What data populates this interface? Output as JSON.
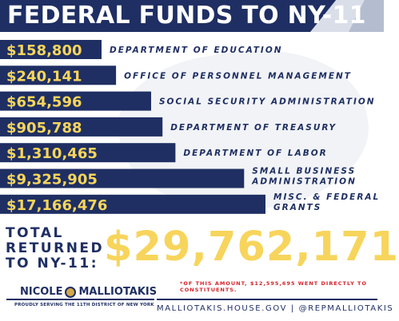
{
  "header": {
    "title": "FEDERAL FUNDS TO NY-11"
  },
  "chart_data": {
    "type": "bar",
    "orientation": "horizontal",
    "title": "FEDERAL FUNDS TO NY-11",
    "categories": [
      "DEPARTMENT OF EDUCATION",
      "OFFICE OF PERSONNEL MANAGEMENT",
      "SOCIAL SECURITY ADMINISTRATION",
      "DEPARTMENT OF TREASURY",
      "DEPARTMENT OF LABOR",
      "SMALL BUSINESS ADMINISTRATION",
      "MISC. & FEDERAL GRANTS"
    ],
    "category_lines": [
      [
        "DEPARTMENT OF EDUCATION"
      ],
      [
        "OFFICE OF PERSONNEL MANAGEMENT"
      ],
      [
        "SOCIAL SECURITY ADMINISTRATION"
      ],
      [
        "DEPARTMENT OF TREASURY"
      ],
      [
        "DEPARTMENT OF LABOR"
      ],
      [
        "SMALL BUSINESS",
        "ADMINISTRATION"
      ],
      [
        "MISC. & FEDERAL",
        "GRANTS"
      ]
    ],
    "values": [
      158800,
      240141,
      654596,
      905788,
      1310465,
      9325905,
      17166476
    ],
    "value_labels": [
      "$158,800",
      "$240,141",
      "$654,596",
      "$905,788",
      "$1,310,465",
      "$9,325,905",
      "$17,166,476"
    ],
    "bar_color": "#1f2f63",
    "label_color": "#f7d55c"
  },
  "total": {
    "label_lines": [
      "TOTAL",
      "RETURNED",
      "TO NY-11:"
    ],
    "amount": "$29,762,171"
  },
  "footnote": "*OF THIS AMOUNT, $12,595,695 WENT DIRECTLY TO CONSTITUENTS.",
  "footer": {
    "name_first": "NICOLE",
    "name_last": "MALLIOTAKIS",
    "tagline": "PROUDLY SERVING THE 11TH DISTRICT OF NEW YORK",
    "website": "MALLIOTAKIS.HOUSE.GOV | @REPMALLIOTAKIS"
  },
  "colors": {
    "navy": "#1f2f63",
    "gold": "#f7d55c",
    "red": "#d6232a"
  }
}
